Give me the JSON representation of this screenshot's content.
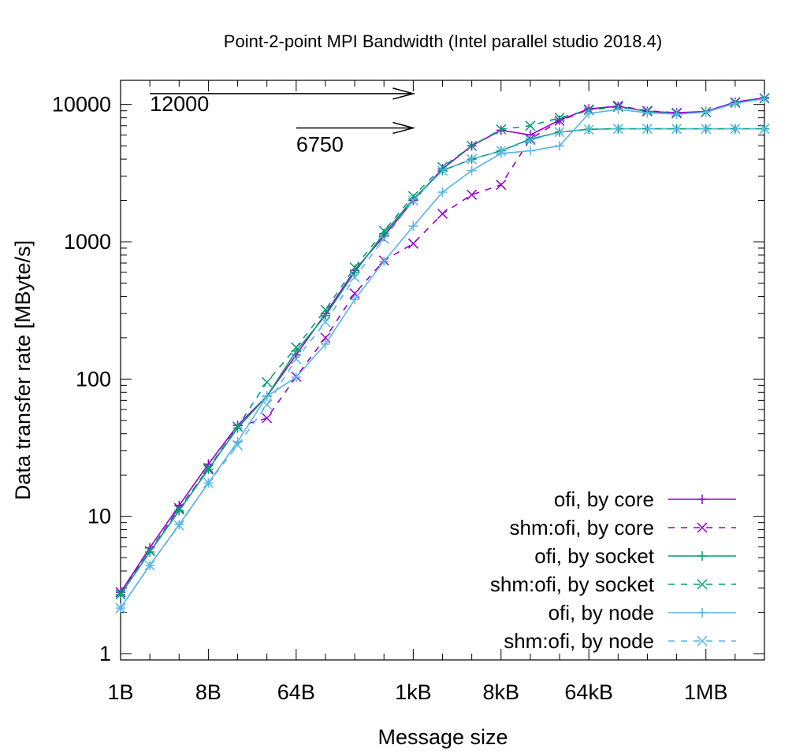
{
  "chart_data": {
    "type": "line",
    "title": "Point-2-point MPI Bandwidth (Intel parallel studio 2018.4)",
    "xlabel": "Message size",
    "ylabel": "Data transfer rate [MByte/s]",
    "x_scale": "log2",
    "y_scale": "log10",
    "xlim": [
      1,
      4194304
    ],
    "ylim": [
      0.9,
      15000
    ],
    "x_tick_values": [
      1,
      8,
      64,
      1024,
      8192,
      65536,
      1048576
    ],
    "x_tick_labels": [
      "1B",
      "8B",
      "64B",
      "1kB",
      "8kB",
      "64kB",
      "1MB"
    ],
    "y_tick_values": [
      1,
      10,
      100,
      1000,
      10000
    ],
    "y_tick_labels": [
      "1",
      "10",
      "100",
      "1000",
      "10000"
    ],
    "grid": false,
    "legend_position": "bottom-right",
    "annotations": [
      {
        "text": "12000",
        "value": 12000
      },
      {
        "text": "6750",
        "value": 6750
      }
    ],
    "x": [
      1,
      2,
      4,
      8,
      16,
      32,
      64,
      128,
      256,
      512,
      1024,
      2048,
      4096,
      8192,
      16384,
      32768,
      65536,
      131072,
      262144,
      524288,
      1048576,
      2097152,
      4194304
    ],
    "series": [
      {
        "name": "ofi, by core",
        "color": "#9400d3",
        "dash": false,
        "marker": "plus",
        "values": [
          2.8,
          5.9,
          12,
          24,
          46,
          75,
          150,
          300,
          620,
          1100,
          2000,
          3400,
          5000,
          6500,
          6000,
          7700,
          9300,
          9700,
          8900,
          8700,
          8900,
          10400,
          11200
        ]
      },
      {
        "name": "shm:ofi, by core",
        "color": "#9400d3",
        "dash": true,
        "marker": "cross",
        "values": [
          2.8,
          5.6,
          11.5,
          22,
          45,
          52,
          104,
          200,
          420,
          730,
          970,
          1600,
          2200,
          2600,
          5600,
          7600,
          9200,
          9800,
          9000,
          8700,
          8800,
          10400,
          11100
        ]
      },
      {
        "name": "ofi, by socket",
        "color": "#009e73",
        "dash": false,
        "marker": "plus",
        "values": [
          2.7,
          5.5,
          11,
          22,
          44,
          75,
          160,
          290,
          600,
          1150,
          2050,
          3300,
          4000,
          4600,
          5600,
          6300,
          6600,
          6650,
          6650,
          6650,
          6650,
          6650,
          6650
        ]
      },
      {
        "name": "shm:ofi, by socket",
        "color": "#009e73",
        "dash": true,
        "marker": "cross",
        "values": [
          2.7,
          5.6,
          11.2,
          22.5,
          45,
          95,
          170,
          320,
          650,
          1200,
          2150,
          3500,
          5000,
          6600,
          7000,
          8000,
          9100,
          9600,
          8900,
          8600,
          8800,
          10300,
          11100
        ]
      },
      {
        "name": "ofi, by node",
        "color": "#56b4e9",
        "dash": false,
        "marker": "plus",
        "values": [
          2.15,
          4.4,
          8.7,
          17.5,
          35,
          75,
          103,
          180,
          380,
          720,
          1300,
          2300,
          3300,
          4400,
          4600,
          5000,
          8600,
          9200,
          8700,
          8500,
          8800,
          10200,
          11000
        ]
      },
      {
        "name": "shm:ofi, by node",
        "color": "#56b4e9",
        "dash": true,
        "marker": "cross",
        "values": [
          2.15,
          4.4,
          8.6,
          17.5,
          33,
          65,
          140,
          260,
          550,
          1050,
          2000,
          3300,
          4000,
          4600,
          5500,
          6300,
          6550,
          6650,
          6650,
          6650,
          6650,
          6650,
          6650
        ]
      }
    ]
  }
}
